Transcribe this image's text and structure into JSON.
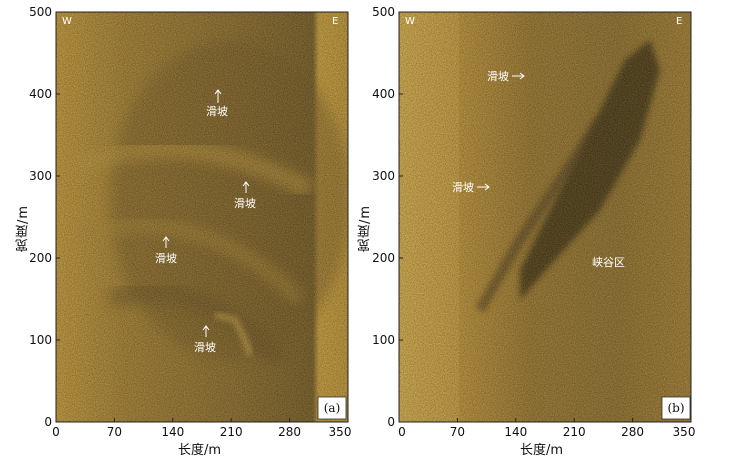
{
  "panels": [
    {
      "id": "a",
      "label": "(a)",
      "corner_left": "W",
      "corner_right": "E",
      "xlabel": "长度/m",
      "ylabel": "宽度/m",
      "xticks": [
        "0",
        "70",
        "140",
        "210",
        "280",
        "350"
      ],
      "yticks": [
        "0",
        "100",
        "200",
        "300",
        "400",
        "500"
      ],
      "annotations": [
        {
          "text": "滑坡",
          "arrow": "up"
        },
        {
          "text": "滑坡",
          "arrow": "up"
        },
        {
          "text": "滑坡",
          "arrow": "up"
        },
        {
          "text": "滑坡",
          "arrow": "up"
        }
      ]
    },
    {
      "id": "b",
      "label": "(b)",
      "corner_left": "W",
      "corner_right": "E",
      "xlabel": "长度/m",
      "ylabel": "宽度/m",
      "xticks": [
        "0",
        "70",
        "140",
        "210",
        "280",
        "350"
      ],
      "yticks": [
        "0",
        "100",
        "200",
        "300",
        "400",
        "500"
      ],
      "annotations": [
        {
          "text": "滑坡",
          "arrow": "right"
        },
        {
          "text": "滑坡",
          "arrow": "right"
        },
        {
          "text": "峡谷区",
          "arrow": "none"
        }
      ]
    }
  ],
  "colors": {
    "sonar_light": "#d9a737",
    "sonar_mid": "#9c7425",
    "sonar_dark": "#4a3210",
    "shadow": "#2a1a06"
  }
}
